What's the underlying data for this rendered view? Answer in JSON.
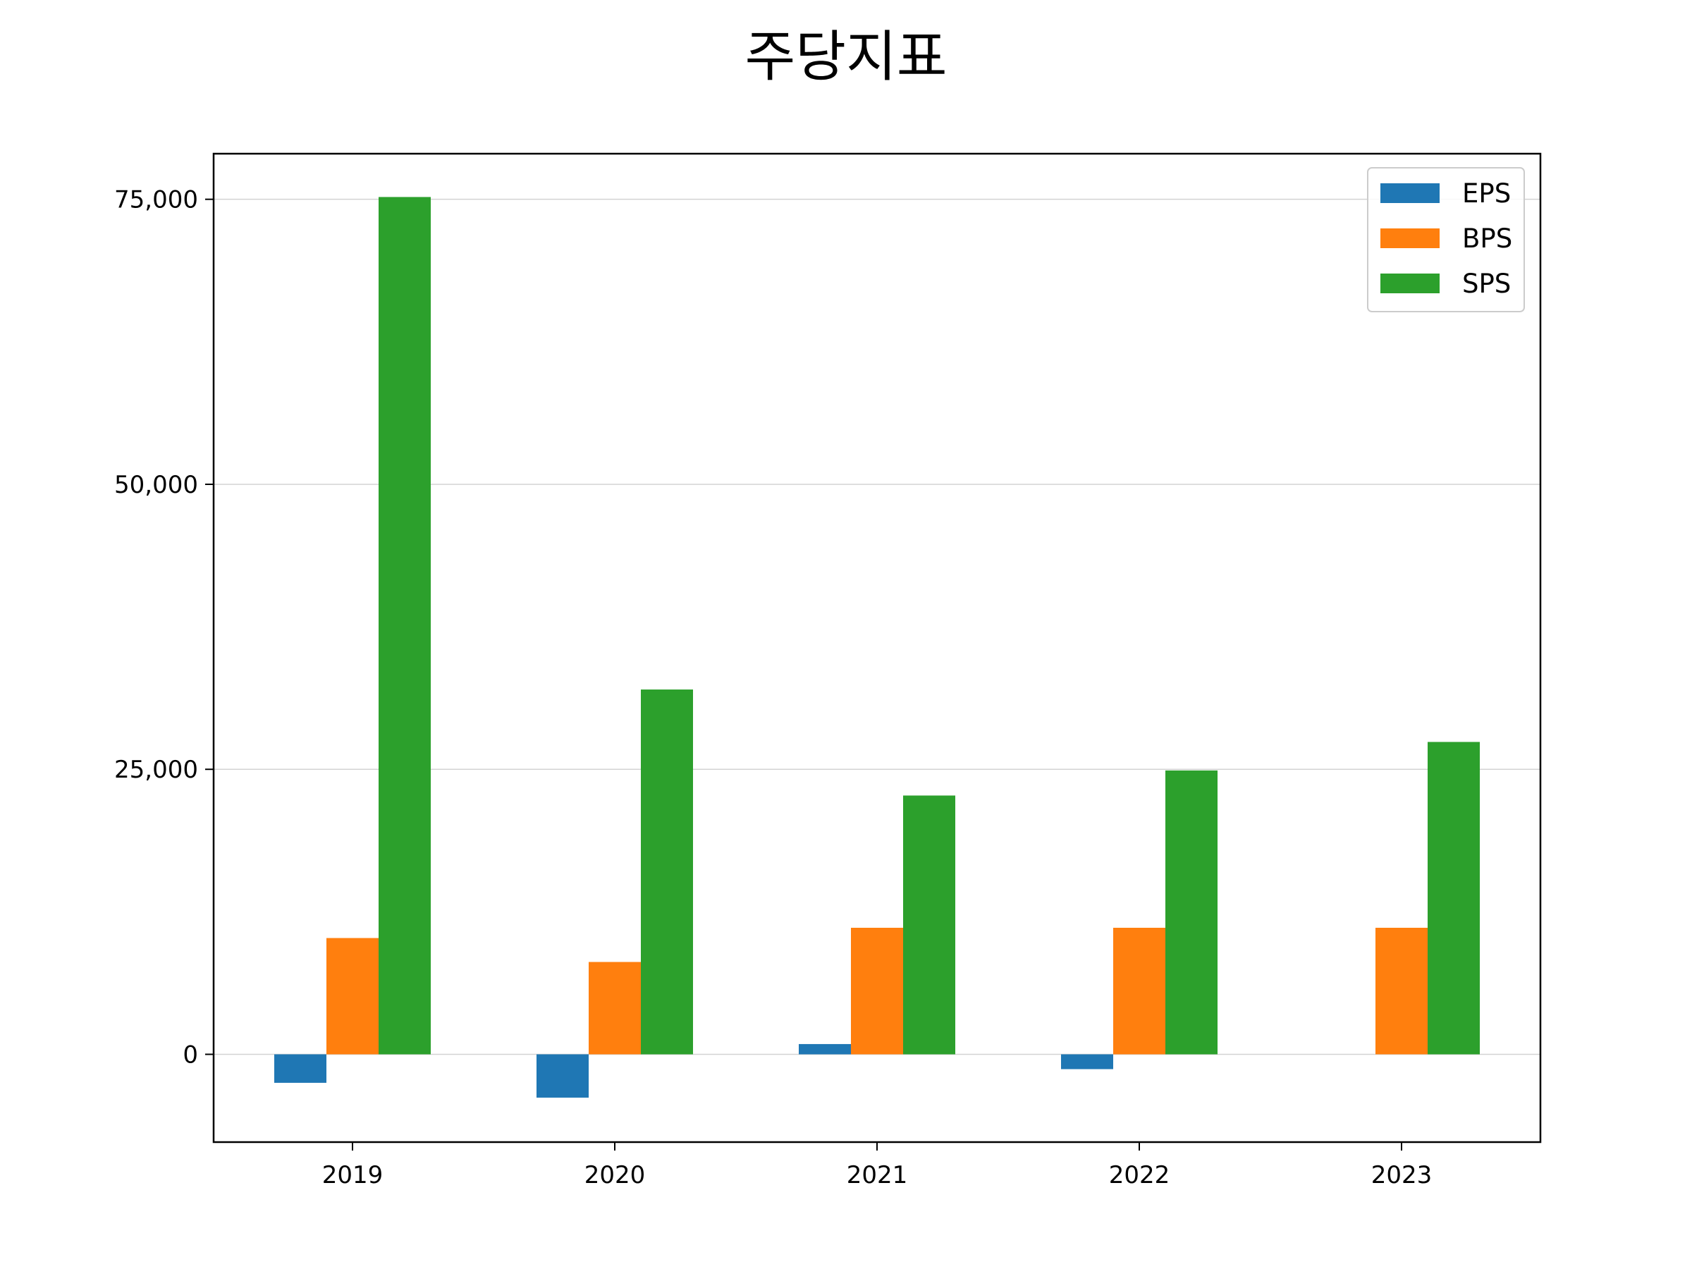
{
  "chart_data": {
    "type": "bar",
    "title": "주당지표",
    "xlabel": "",
    "ylabel": "",
    "categories": [
      "2019",
      "2020",
      "2021",
      "2022",
      "2023"
    ],
    "series": [
      {
        "name": "EPS",
        "color": "#1f77b4",
        "values": [
          -2500,
          -3800,
          900,
          -1300,
          0
        ]
      },
      {
        "name": "BPS",
        "color": "#ff7f0e",
        "values": [
          10200,
          8100,
          11100,
          11100,
          11100
        ]
      },
      {
        "name": "SPS",
        "color": "#2ca02c",
        "values": [
          75200,
          32000,
          22700,
          24900,
          27400
        ]
      }
    ],
    "ylim": [
      -7700,
      79000
    ],
    "yticks": [
      0,
      25000,
      50000,
      75000
    ],
    "ytick_labels": [
      "0",
      "25,000",
      "50,000",
      "75,000"
    ],
    "grid": "horizontal",
    "legend_position": "top-right"
  }
}
